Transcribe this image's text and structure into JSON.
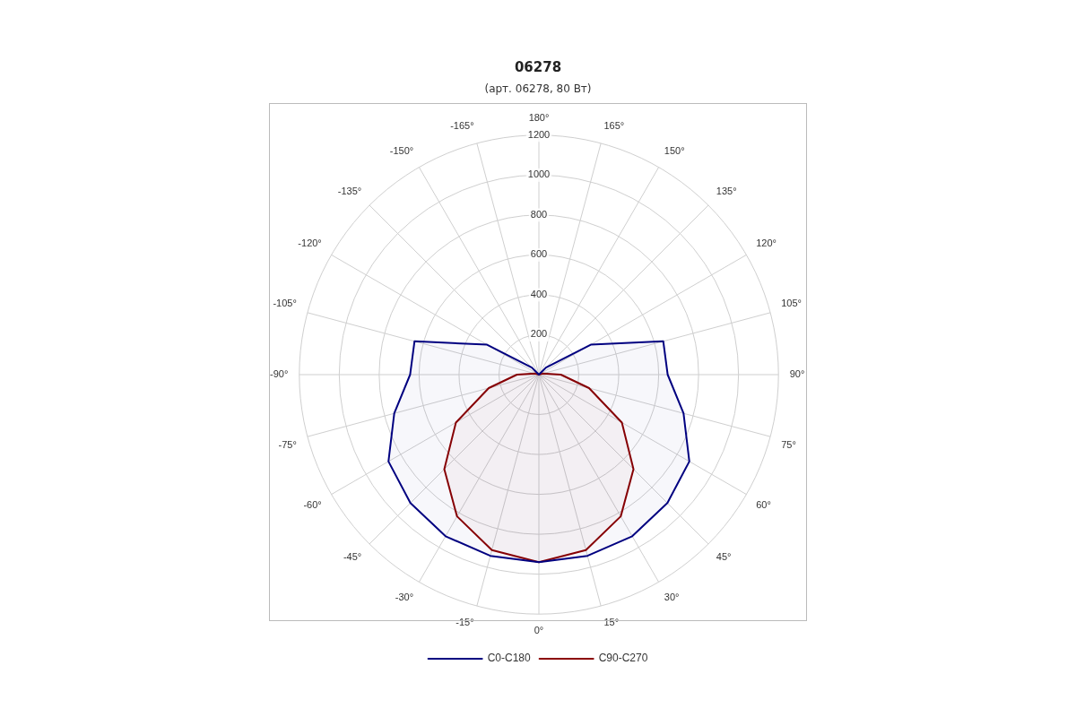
{
  "chart_data": {
    "type": "radar",
    "title": "06278",
    "subtitle": "(арт. 06278, 80 Вт)",
    "categories": [
      "180°",
      "165°",
      "150°",
      "135°",
      "120°",
      "105°",
      "90°",
      "75°",
      "60°",
      "45°",
      "30°",
      "15°",
      "0°",
      "-15°",
      "-30°",
      "-45°",
      "-60°",
      "-75°",
      "-90°",
      "-105°",
      "-120°",
      "-135°",
      "-150°",
      "-165°"
    ],
    "series": [
      {
        "name": "C0-C180",
        "color": "#000080",
        "values": [
          0,
          0,
          0,
          50,
          300,
          645,
          645,
          750,
          870,
          910,
          935,
          940,
          940,
          940,
          935,
          910,
          870,
          750,
          645,
          645,
          300,
          50,
          0,
          0
        ]
      },
      {
        "name": "C90-C270",
        "color": "#8b0000",
        "values": [
          0,
          0,
          0,
          0,
          0,
          20,
          110,
          260,
          480,
          670,
          820,
          910,
          940,
          910,
          820,
          670,
          480,
          260,
          110,
          20,
          0,
          0,
          0,
          0
        ]
      }
    ],
    "ylim": [
      0,
      1200
    ],
    "yticks": [
      200,
      400,
      600,
      800,
      1000,
      1200
    ],
    "grid": true,
    "legend": "bottom",
    "marker": "none",
    "line_style": "solid"
  }
}
